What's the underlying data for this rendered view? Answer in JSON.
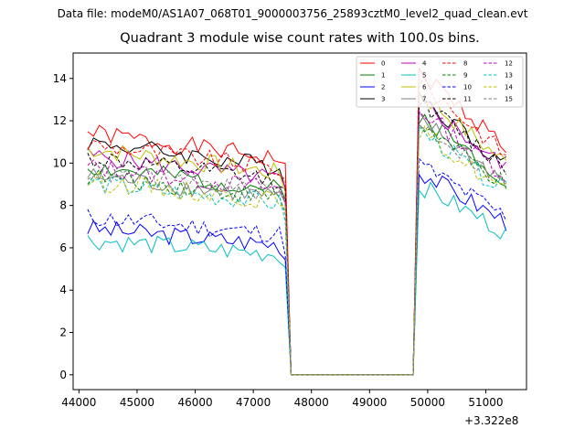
{
  "suptitle": "Data file: modeM0/AS1A07_068T01_9000003756_25893cztM0_level2_quad_clean.evt",
  "chart_data": {
    "type": "line",
    "title": "Quadrant 3 module wise count rates with 100.0s bins.",
    "xlabel": "",
    "ylabel": "",
    "x_offset_label": "+3.322e8",
    "xlim": [
      43900,
      51700
    ],
    "ylim": [
      -0.7,
      15.2
    ],
    "xticks": [
      44000,
      45000,
      46000,
      47000,
      48000,
      49000,
      50000,
      51000
    ],
    "yticks": [
      0,
      2,
      4,
      6,
      8,
      10,
      12,
      14
    ],
    "x_start": 44150,
    "x_step": 100,
    "segments": [
      {
        "start": 44150,
        "end": 47550
      },
      {
        "start": 47650,
        "end": 49750
      },
      {
        "start": 49850,
        "end": 51350
      }
    ],
    "legend_position": "top-right",
    "series": [
      {
        "name": "0",
        "color": "#ff0000",
        "dash": "solid",
        "level1": 10.6,
        "level2": 12.8,
        "seed": 1
      },
      {
        "name": "1",
        "color": "#008000",
        "dash": "solid",
        "level1": 9.1,
        "level2": 11.0,
        "seed": 2
      },
      {
        "name": "2",
        "color": "#0000ff",
        "dash": "solid",
        "level1": 6.4,
        "level2": 8.6,
        "seed": 3
      },
      {
        "name": "3",
        "color": "#000000",
        "dash": "solid",
        "level1": 10.2,
        "level2": 11.8,
        "seed": 4
      },
      {
        "name": "4",
        "color": "#bf00bf",
        "dash": "solid",
        "level1": 9.6,
        "level2": 11.6,
        "seed": 5
      },
      {
        "name": "5",
        "color": "#00bfbf",
        "dash": "solid",
        "level1": 5.9,
        "level2": 8.0,
        "seed": 6
      },
      {
        "name": "6",
        "color": "#bfbf00",
        "dash": "solid",
        "level1": 9.9,
        "level2": 11.9,
        "seed": 7
      },
      {
        "name": "7",
        "color": "#808080",
        "dash": "solid",
        "level1": 8.7,
        "level2": 10.8,
        "seed": 8
      },
      {
        "name": "8",
        "color": "#ff0000",
        "dash": "dashed",
        "level1": 10.1,
        "level2": 12.4,
        "seed": 9
      },
      {
        "name": "9",
        "color": "#008000",
        "dash": "dashed",
        "level1": 8.7,
        "level2": 10.6,
        "seed": 10
      },
      {
        "name": "10",
        "color": "#0000ff",
        "dash": "dashed",
        "level1": 6.9,
        "level2": 8.9,
        "seed": 11
      },
      {
        "name": "11",
        "color": "#000000",
        "dash": "dashed",
        "level1": 9.5,
        "level2": 11.6,
        "seed": 12
      },
      {
        "name": "12",
        "color": "#bf00bf",
        "dash": "dashed",
        "level1": 9.1,
        "level2": 11.2,
        "seed": 13
      },
      {
        "name": "13",
        "color": "#00bfbf",
        "dash": "dashed",
        "level1": 8.4,
        "level2": 10.3,
        "seed": 14
      },
      {
        "name": "14",
        "color": "#bfbf00",
        "dash": "dashed",
        "level1": 8.5,
        "level2": 10.3,
        "seed": 15
      },
      {
        "name": "15",
        "color": "#808080",
        "dash": "dashed",
        "level1": 8.9,
        "level2": 10.7,
        "seed": 16
      }
    ]
  }
}
